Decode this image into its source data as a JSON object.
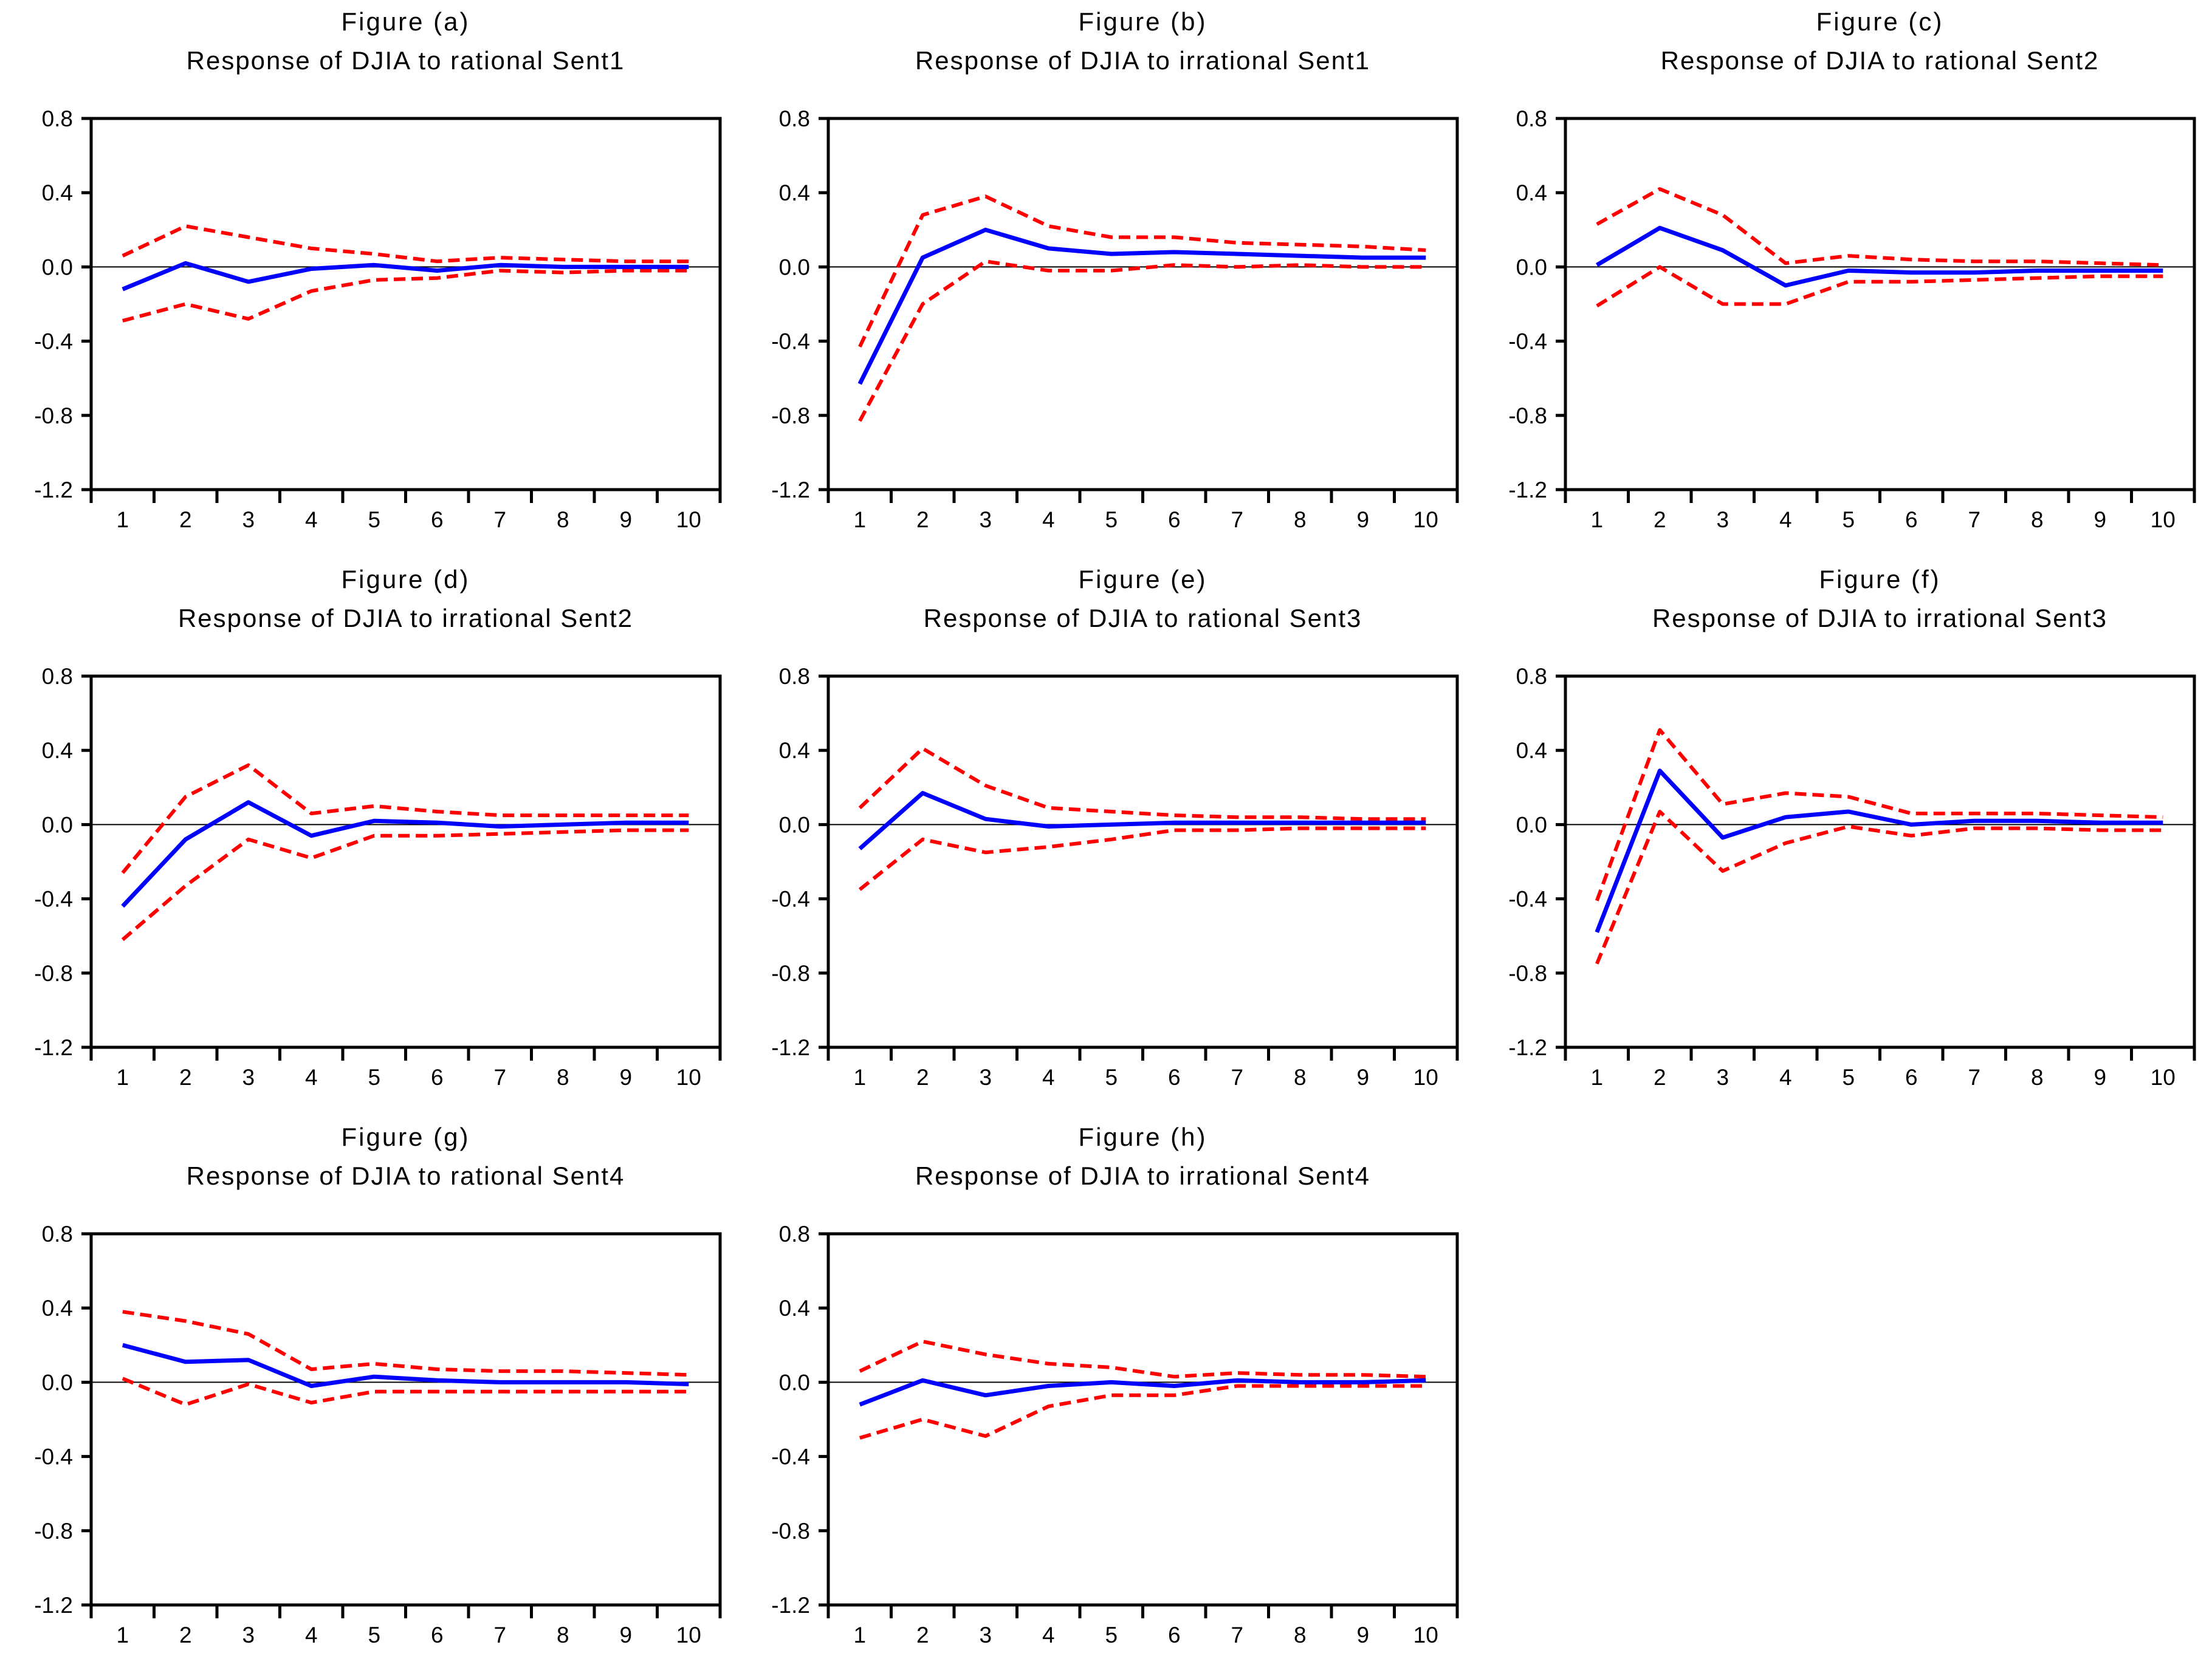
{
  "page": {
    "background": "#ffffff"
  },
  "colors": {
    "response_line": "#0000ff",
    "confidence_band": "#ff0000",
    "axis": "#000000",
    "zero_line": "#000000"
  },
  "axis": {
    "ylim": [
      -1.2,
      0.8
    ],
    "yticks": [
      0.8,
      0.4,
      0.0,
      -0.4,
      -0.8,
      -1.2
    ],
    "ytick_labels": [
      "0.8",
      "0.4",
      "0.0",
      "-0.4",
      "-0.8",
      "-1.2"
    ],
    "xtick_labels": [
      "1",
      "2",
      "3",
      "4",
      "5",
      "6",
      "7",
      "8",
      "9",
      "10"
    ],
    "grid": false,
    "zero_line": true,
    "legend": "none"
  },
  "chart_data": [
    {
      "type": "line",
      "figure_label": "Figure (a)",
      "title": "Response of DJIA to rational Sent1",
      "x": [
        1,
        2,
        3,
        4,
        5,
        6,
        7,
        8,
        9,
        10
      ],
      "ylim": [
        -1.2,
        0.8
      ],
      "series": [
        {
          "name": "response",
          "color": "#0000ff",
          "style": "solid",
          "values": [
            -0.12,
            0.02,
            -0.08,
            -0.01,
            0.01,
            -0.02,
            0.01,
            0.0,
            0.0,
            0.0
          ]
        },
        {
          "name": "upper-confidence-band",
          "color": "#ff0000",
          "style": "dashed",
          "values": [
            0.06,
            0.22,
            0.16,
            0.1,
            0.07,
            0.03,
            0.05,
            0.04,
            0.03,
            0.03
          ]
        },
        {
          "name": "lower-confidence-band",
          "color": "#ff0000",
          "style": "dashed",
          "values": [
            -0.29,
            -0.2,
            -0.28,
            -0.13,
            -0.07,
            -0.06,
            -0.02,
            -0.03,
            -0.02,
            -0.02
          ]
        }
      ]
    },
    {
      "type": "line",
      "figure_label": "Figure (b)",
      "title": "Response of DJIA to irrational Sent1",
      "x": [
        1,
        2,
        3,
        4,
        5,
        6,
        7,
        8,
        9,
        10
      ],
      "ylim": [
        -1.2,
        0.8
      ],
      "series": [
        {
          "name": "response",
          "color": "#0000ff",
          "style": "solid",
          "values": [
            -0.63,
            0.05,
            0.2,
            0.1,
            0.07,
            0.08,
            0.07,
            0.06,
            0.05,
            0.05
          ]
        },
        {
          "name": "upper-confidence-band",
          "color": "#ff0000",
          "style": "dashed",
          "values": [
            -0.43,
            0.28,
            0.38,
            0.22,
            0.16,
            0.16,
            0.13,
            0.12,
            0.11,
            0.09
          ]
        },
        {
          "name": "lower-confidence-band",
          "color": "#ff0000",
          "style": "dashed",
          "values": [
            -0.83,
            -0.2,
            0.03,
            -0.02,
            -0.02,
            0.01,
            0.0,
            0.01,
            0.0,
            0.0
          ]
        }
      ]
    },
    {
      "type": "line",
      "figure_label": "Figure (c)",
      "title": "Response of DJIA to rational Sent2",
      "x": [
        1,
        2,
        3,
        4,
        5,
        6,
        7,
        8,
        9,
        10
      ],
      "ylim": [
        -1.2,
        0.8
      ],
      "series": [
        {
          "name": "response",
          "color": "#0000ff",
          "style": "solid",
          "values": [
            0.01,
            0.21,
            0.09,
            -0.1,
            -0.02,
            -0.03,
            -0.03,
            -0.02,
            -0.02,
            -0.02
          ]
        },
        {
          "name": "upper-confidence-band",
          "color": "#ff0000",
          "style": "dashed",
          "values": [
            0.23,
            0.42,
            0.28,
            0.02,
            0.06,
            0.04,
            0.03,
            0.03,
            0.02,
            0.01
          ]
        },
        {
          "name": "lower-confidence-band",
          "color": "#ff0000",
          "style": "dashed",
          "values": [
            -0.21,
            0.0,
            -0.2,
            -0.2,
            -0.08,
            -0.08,
            -0.07,
            -0.06,
            -0.05,
            -0.05
          ]
        }
      ]
    },
    {
      "type": "line",
      "figure_label": "Figure (d)",
      "title": "Response of DJIA to irrational Sent2",
      "x": [
        1,
        2,
        3,
        4,
        5,
        6,
        7,
        8,
        9,
        10
      ],
      "ylim": [
        -1.2,
        0.8
      ],
      "series": [
        {
          "name": "response",
          "color": "#0000ff",
          "style": "solid",
          "values": [
            -0.44,
            -0.08,
            0.12,
            -0.06,
            0.02,
            0.01,
            -0.01,
            0.0,
            0.01,
            0.01
          ]
        },
        {
          "name": "upper-confidence-band",
          "color": "#ff0000",
          "style": "dashed",
          "values": [
            -0.26,
            0.15,
            0.32,
            0.06,
            0.1,
            0.07,
            0.05,
            0.05,
            0.05,
            0.05
          ]
        },
        {
          "name": "lower-confidence-band",
          "color": "#ff0000",
          "style": "dashed",
          "values": [
            -0.62,
            -0.33,
            -0.08,
            -0.18,
            -0.06,
            -0.06,
            -0.05,
            -0.04,
            -0.03,
            -0.03
          ]
        }
      ]
    },
    {
      "type": "line",
      "figure_label": "Figure (e)",
      "title": "Response of DJIA to rational Sent3",
      "x": [
        1,
        2,
        3,
        4,
        5,
        6,
        7,
        8,
        9,
        10
      ],
      "ylim": [
        -1.2,
        0.8
      ],
      "series": [
        {
          "name": "response",
          "color": "#0000ff",
          "style": "solid",
          "values": [
            -0.13,
            0.17,
            0.03,
            -0.01,
            0.0,
            0.01,
            0.01,
            0.01,
            0.01,
            0.01
          ]
        },
        {
          "name": "upper-confidence-band",
          "color": "#ff0000",
          "style": "dashed",
          "values": [
            0.09,
            0.41,
            0.21,
            0.09,
            0.07,
            0.05,
            0.04,
            0.04,
            0.03,
            0.03
          ]
        },
        {
          "name": "lower-confidence-band",
          "color": "#ff0000",
          "style": "dashed",
          "values": [
            -0.35,
            -0.08,
            -0.15,
            -0.12,
            -0.08,
            -0.03,
            -0.03,
            -0.02,
            -0.02,
            -0.02
          ]
        }
      ]
    },
    {
      "type": "line",
      "figure_label": "Figure (f)",
      "title": "Response of DJIA to irrational Sent3",
      "x": [
        1,
        2,
        3,
        4,
        5,
        6,
        7,
        8,
        9,
        10
      ],
      "ylim": [
        -1.2,
        0.8
      ],
      "series": [
        {
          "name": "response",
          "color": "#0000ff",
          "style": "solid",
          "values": [
            -0.58,
            0.29,
            -0.07,
            0.04,
            0.07,
            0.0,
            0.02,
            0.02,
            0.01,
            0.01
          ]
        },
        {
          "name": "upper-confidence-band",
          "color": "#ff0000",
          "style": "dashed",
          "values": [
            -0.41,
            0.51,
            0.11,
            0.17,
            0.15,
            0.06,
            0.06,
            0.06,
            0.05,
            0.04
          ]
        },
        {
          "name": "lower-confidence-band",
          "color": "#ff0000",
          "style": "dashed",
          "values": [
            -0.75,
            0.07,
            -0.25,
            -0.1,
            -0.01,
            -0.06,
            -0.02,
            -0.02,
            -0.03,
            -0.03
          ]
        }
      ]
    },
    {
      "type": "line",
      "figure_label": "Figure (g)",
      "title": "Response of DJIA to rational Sent4",
      "x": [
        1,
        2,
        3,
        4,
        5,
        6,
        7,
        8,
        9,
        10
      ],
      "ylim": [
        -1.2,
        0.8
      ],
      "series": [
        {
          "name": "response",
          "color": "#0000ff",
          "style": "solid",
          "values": [
            0.2,
            0.11,
            0.12,
            -0.02,
            0.03,
            0.01,
            0.0,
            0.0,
            0.0,
            -0.01
          ]
        },
        {
          "name": "upper-confidence-band",
          "color": "#ff0000",
          "style": "dashed",
          "values": [
            0.38,
            0.33,
            0.26,
            0.07,
            0.1,
            0.07,
            0.06,
            0.06,
            0.05,
            0.04
          ]
        },
        {
          "name": "lower-confidence-band",
          "color": "#ff0000",
          "style": "dashed",
          "values": [
            0.02,
            -0.12,
            -0.01,
            -0.11,
            -0.05,
            -0.05,
            -0.05,
            -0.05,
            -0.05,
            -0.05
          ]
        }
      ]
    },
    {
      "type": "line",
      "figure_label": "Figure (h)",
      "title": "Response of DJIA to irrational Sent4",
      "x": [
        1,
        2,
        3,
        4,
        5,
        6,
        7,
        8,
        9,
        10
      ],
      "ylim": [
        -1.2,
        0.8
      ],
      "series": [
        {
          "name": "response",
          "color": "#0000ff",
          "style": "solid",
          "values": [
            -0.12,
            0.01,
            -0.07,
            -0.02,
            0.0,
            -0.02,
            0.01,
            0.0,
            0.0,
            0.01
          ]
        },
        {
          "name": "upper-confidence-band",
          "color": "#ff0000",
          "style": "dashed",
          "values": [
            0.06,
            0.22,
            0.15,
            0.1,
            0.08,
            0.03,
            0.05,
            0.04,
            0.04,
            0.03
          ]
        },
        {
          "name": "lower-confidence-band",
          "color": "#ff0000",
          "style": "dashed",
          "values": [
            -0.3,
            -0.2,
            -0.29,
            -0.13,
            -0.07,
            -0.07,
            -0.02,
            -0.02,
            -0.02,
            -0.02
          ]
        }
      ]
    }
  ]
}
